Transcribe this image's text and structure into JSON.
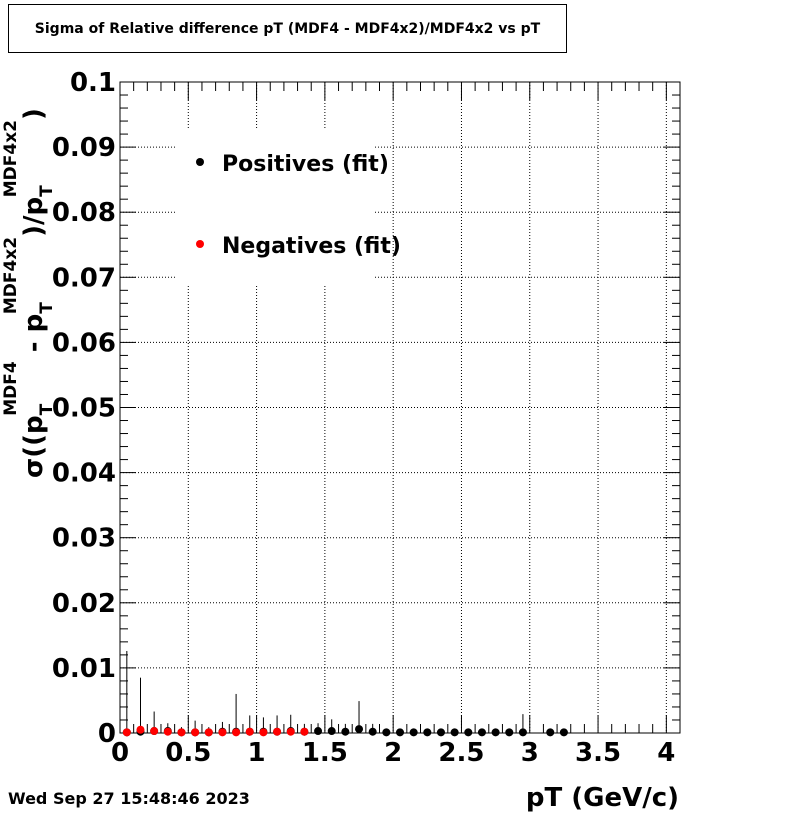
{
  "title": "Sigma of Relative difference pT (MDF4 - MDF4x2)/MDF4x2 vs pT",
  "timestamp": "Wed Sep 27 15:48:46 2023",
  "chart_data": {
    "type": "scatter",
    "title": "Sigma of Relative difference pT (MDF4 - MDF4x2)/MDF4x2 vs pT",
    "xlabel": "pT (GeV/c)",
    "ylabel": {
      "prefix": "σ((p",
      "sub1": "T",
      "sup1": "MDF4",
      "mid": " - p",
      "sub2": "T",
      "sup2": "MDF4x2",
      "mid2": ")/p",
      "sub3": "T",
      "sup3": "MDF4x2",
      "suffix": ")"
    },
    "xlim": [
      0,
      4.1
    ],
    "ylim": [
      0,
      0.1
    ],
    "x_ticks": [
      "0",
      "0.5",
      "1",
      "1.5",
      "2",
      "2.5",
      "3",
      "3.5",
      "4"
    ],
    "y_ticks": [
      "0",
      "0.01",
      "0.02",
      "0.03",
      "0.04",
      "0.05",
      "0.06",
      "0.07",
      "0.08",
      "0.09",
      "0.1"
    ],
    "grid": true,
    "legend_placement": "top-left",
    "series": [
      {
        "name": "Positives (fit)",
        "color": "#000000",
        "points": [
          {
            "x": 0.05,
            "y": 0.0001,
            "err": 0.0125
          },
          {
            "x": 0.15,
            "y": 0.0002,
            "err": 0.0083
          },
          {
            "x": 0.25,
            "y": 0.0003,
            "err": 0.003
          },
          {
            "x": 0.35,
            "y": 0.0003,
            "err": 0.0012
          },
          {
            "x": 0.45,
            "y": 0.0001,
            "err": 0.0008
          },
          {
            "x": 0.55,
            "y": 0.0001,
            "err": 0.0018
          },
          {
            "x": 0.65,
            "y": 0.0001,
            "err": 0.0008
          },
          {
            "x": 0.75,
            "y": 0.0002,
            "err": 0.0015
          },
          {
            "x": 0.85,
            "y": 0.0002,
            "err": 0.0058
          },
          {
            "x": 0.95,
            "y": 0.0002,
            "err": 0.0025
          },
          {
            "x": 1.05,
            "y": 0.0002,
            "err": 0.0022
          },
          {
            "x": 1.15,
            "y": 0.0002,
            "err": 0.0025
          },
          {
            "x": 1.25,
            "y": 0.0003,
            "err": 0.0025
          },
          {
            "x": 1.35,
            "y": 0.0002,
            "err": 0.0012
          },
          {
            "x": 1.45,
            "y": 0.0003,
            "err": 0.0012
          },
          {
            "x": 1.55,
            "y": 0.0003,
            "err": 0.0018
          },
          {
            "x": 1.65,
            "y": 0.0002,
            "err": 0.0012
          },
          {
            "x": 1.75,
            "y": 0.0006,
            "err": 0.0043
          },
          {
            "x": 1.85,
            "y": 0.0002,
            "err": 0.0012
          },
          {
            "x": 1.95,
            "y": 0.0001,
            "err": 0.0006
          },
          {
            "x": 2.05,
            "y": 0.0001,
            "err": 0.0006
          },
          {
            "x": 2.15,
            "y": 0.0001,
            "err": 0.0006
          },
          {
            "x": 2.25,
            "y": 0.0001,
            "err": 0.0006
          },
          {
            "x": 2.35,
            "y": 0.0001,
            "err": 0.0006
          },
          {
            "x": 2.45,
            "y": 0.0001,
            "err": 0.0006
          },
          {
            "x": 2.55,
            "y": 0.0001,
            "err": 0.0006
          },
          {
            "x": 2.65,
            "y": 0.0001,
            "err": 0.0006
          },
          {
            "x": 2.75,
            "y": 0.0001,
            "err": 0.0006
          },
          {
            "x": 2.85,
            "y": 0.0001,
            "err": 0.0006
          },
          {
            "x": 2.95,
            "y": 0.0001,
            "err": 0.0028
          },
          {
            "x": 3.15,
            "y": 0.0001,
            "err": 0.0006
          },
          {
            "x": 3.25,
            "y": 0.0001,
            "err": 0.0006
          }
        ]
      },
      {
        "name": "Negatives (fit)",
        "color": "#ff0000",
        "points": [
          {
            "x": 0.05,
            "y": 0.0001,
            "err": 0.0
          },
          {
            "x": 0.15,
            "y": 0.0005,
            "err": 0.0
          },
          {
            "x": 0.25,
            "y": 0.0003,
            "err": 0.0
          },
          {
            "x": 0.35,
            "y": 0.0002,
            "err": 0.0
          },
          {
            "x": 0.45,
            "y": 0.0001,
            "err": 0.0
          },
          {
            "x": 0.55,
            "y": 0.0001,
            "err": 0.0
          },
          {
            "x": 0.65,
            "y": 0.0001,
            "err": 0.0
          },
          {
            "x": 0.75,
            "y": 0.0001,
            "err": 0.0
          },
          {
            "x": 0.85,
            "y": 0.0001,
            "err": 0.0
          },
          {
            "x": 0.95,
            "y": 0.0002,
            "err": 0.0
          },
          {
            "x": 1.05,
            "y": 0.0001,
            "err": 0.0
          },
          {
            "x": 1.15,
            "y": 0.0002,
            "err": 0.0
          },
          {
            "x": 1.25,
            "y": 0.0002,
            "err": 0.0
          },
          {
            "x": 1.35,
            "y": 0.0002,
            "err": 0.0
          }
        ]
      }
    ]
  }
}
